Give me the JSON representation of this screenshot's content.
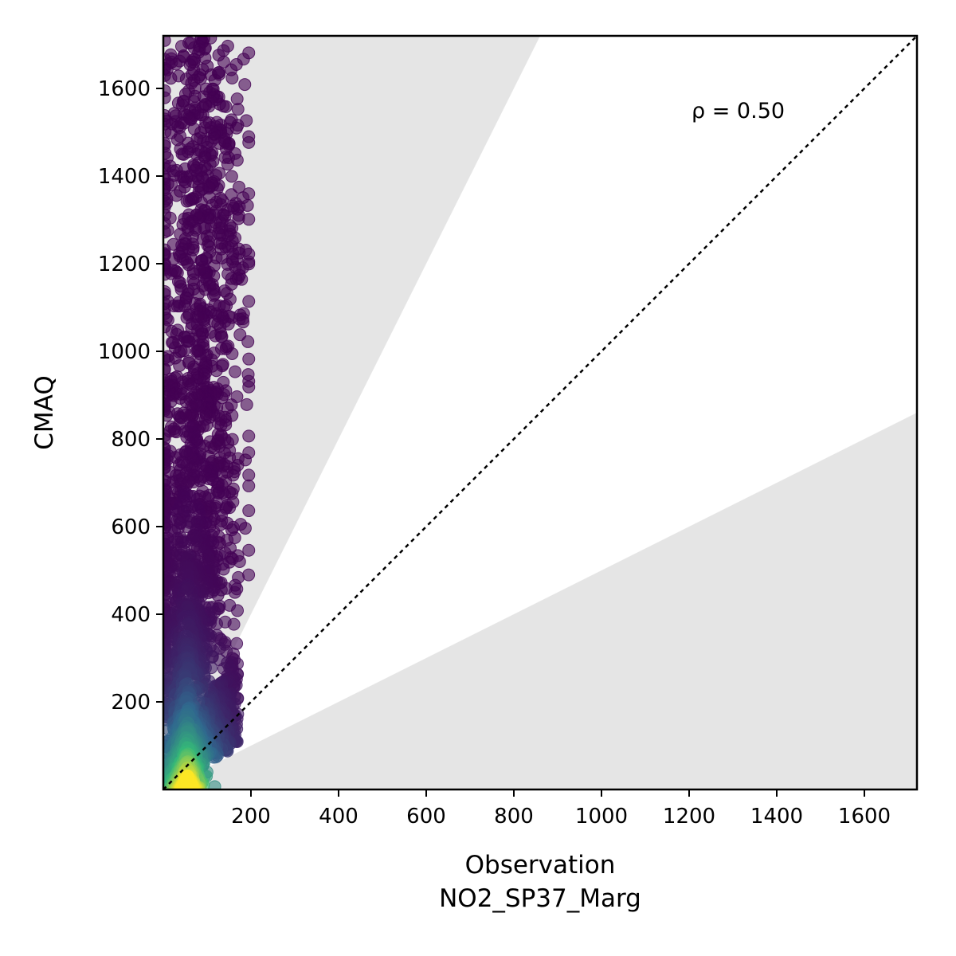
{
  "chart_data": {
    "type": "scatter",
    "title": "",
    "xlabel": "Observation",
    "xlabel_sub": "NO2_SP37_Marg",
    "ylabel": "CMAQ",
    "xlim": [
      0,
      1720
    ],
    "ylim": [
      0,
      1720
    ],
    "xticks": [
      200,
      400,
      600,
      800,
      1000,
      1200,
      1400,
      1600
    ],
    "yticks": [
      200,
      400,
      600,
      800,
      1000,
      1200,
      1400,
      1600
    ],
    "annotation": "ρ = 0.50",
    "one_to_one_line": true,
    "shaded_regions": [
      {
        "description": "above factor-of-2 band",
        "slope": 2
      },
      {
        "description": "below factor-of-2 band",
        "slope": 0.5
      }
    ],
    "point_color_scale": "density (viridis)",
    "points_sample": [
      [
        30,
        20
      ],
      [
        45,
        60
      ],
      [
        50,
        90
      ],
      [
        60,
        150
      ],
      [
        70,
        220
      ],
      [
        80,
        300
      ],
      [
        90,
        400
      ],
      [
        100,
        500
      ],
      [
        110,
        600
      ],
      [
        120,
        700
      ],
      [
        100,
        800
      ],
      [
        90,
        900
      ],
      [
        110,
        1000
      ],
      [
        100,
        1100
      ],
      [
        90,
        1200
      ],
      [
        80,
        1300
      ],
      [
        90,
        1400
      ],
      [
        70,
        1500
      ],
      [
        80,
        1600
      ],
      [
        100,
        1700
      ],
      [
        170,
        200
      ],
      [
        150,
        120
      ],
      [
        130,
        80
      ],
      [
        60,
        40
      ]
    ],
    "colors": {
      "low_density": "#440154",
      "mid_density": "#31688e",
      "high_density": "#35b779",
      "peak_density": "#fde725",
      "shade": "#e5e5e5"
    }
  }
}
